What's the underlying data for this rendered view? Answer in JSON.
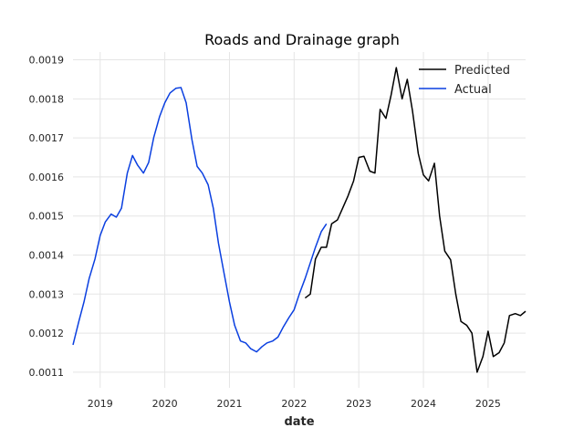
{
  "chart_data": {
    "type": "line",
    "title": "Roads and Drainage graph",
    "xlabel": "date",
    "ylabel": "",
    "xlim": [
      2018.58,
      2025.58
    ],
    "ylim": [
      0.00106,
      0.00192
    ],
    "x_ticks": [
      2019,
      2020,
      2021,
      2022,
      2023,
      2024,
      2025
    ],
    "x_tick_labels": [
      "2019",
      "2020",
      "2021",
      "2022",
      "2023",
      "2024",
      "2025"
    ],
    "y_ticks": [
      0.0011,
      0.0012,
      0.0013,
      0.0014,
      0.0015,
      0.0016,
      0.0017,
      0.0018,
      0.0019
    ],
    "y_tick_labels": [
      "0.0011",
      "0.0012",
      "0.0013",
      "0.0014",
      "0.0015",
      "0.0016",
      "0.0017",
      "0.0018",
      "0.0019"
    ],
    "grid": true,
    "legend": {
      "position": "top-right"
    },
    "series": [
      {
        "name": "Predicted",
        "color": "#000000",
        "x": [
          2022.17,
          2022.25,
          2022.33,
          2022.42,
          2022.5,
          2022.58,
          2022.67,
          2022.75,
          2022.83,
          2022.92,
          2023.0,
          2023.08,
          2023.17,
          2023.25,
          2023.33,
          2023.42,
          2023.5,
          2023.58,
          2023.67,
          2023.75,
          2023.83,
          2023.92,
          2024.0,
          2024.08,
          2024.17,
          2024.25,
          2024.33,
          2024.42,
          2024.5,
          2024.58,
          2024.67,
          2024.75,
          2024.83,
          2024.92,
          2025.0,
          2025.08,
          2025.17,
          2025.25,
          2025.33,
          2025.42,
          2025.5,
          2025.58
        ],
        "y": [
          0.00129,
          0.0013,
          0.00139,
          0.00142,
          0.00142,
          0.00148,
          0.00149,
          0.00152,
          0.00155,
          0.00159,
          0.00165,
          0.001653,
          0.001615,
          0.00161,
          0.001773,
          0.00175,
          0.00181,
          0.00188,
          0.0018,
          0.00185,
          0.00177,
          0.00166,
          0.001605,
          0.00159,
          0.001635,
          0.0015,
          0.00141,
          0.001388,
          0.0013,
          0.00123,
          0.00122,
          0.0012,
          0.0011,
          0.00114,
          0.001205,
          0.00114,
          0.00115,
          0.001175,
          0.001245,
          0.00125,
          0.001245,
          0.001256
        ]
      },
      {
        "name": "Actual",
        "color": "#0a3fe0",
        "x": [
          2018.58,
          2018.67,
          2018.75,
          2018.83,
          2018.92,
          2019.0,
          2019.08,
          2019.17,
          2019.25,
          2019.33,
          2019.42,
          2019.5,
          2019.58,
          2019.67,
          2019.75,
          2019.83,
          2019.92,
          2020.0,
          2020.08,
          2020.17,
          2020.25,
          2020.33,
          2020.42,
          2020.5,
          2020.58,
          2020.67,
          2020.75,
          2020.83,
          2020.92,
          2021.0,
          2021.08,
          2021.17,
          2021.25,
          2021.33,
          2021.42,
          2021.5,
          2021.58,
          2021.67,
          2021.75,
          2021.83,
          2021.92,
          2022.0,
          2022.08,
          2022.17,
          2022.25,
          2022.33,
          2022.42,
          2022.5
        ],
        "y": [
          0.00117,
          0.00123,
          0.00128,
          0.00134,
          0.00139,
          0.00145,
          0.001485,
          0.001505,
          0.001497,
          0.00152,
          0.00161,
          0.001655,
          0.00163,
          0.00161,
          0.001637,
          0.001702,
          0.001755,
          0.00179,
          0.001815,
          0.001827,
          0.001829,
          0.00179,
          0.001695,
          0.001627,
          0.00161,
          0.00158,
          0.00152,
          0.00143,
          0.00135,
          0.00128,
          0.00122,
          0.00118,
          0.001175,
          0.00116,
          0.001152,
          0.001165,
          0.001175,
          0.00118,
          0.00119,
          0.001215,
          0.00124,
          0.00126,
          0.0013,
          0.00134,
          0.00138,
          0.00142,
          0.00146,
          0.00148
        ]
      }
    ]
  }
}
